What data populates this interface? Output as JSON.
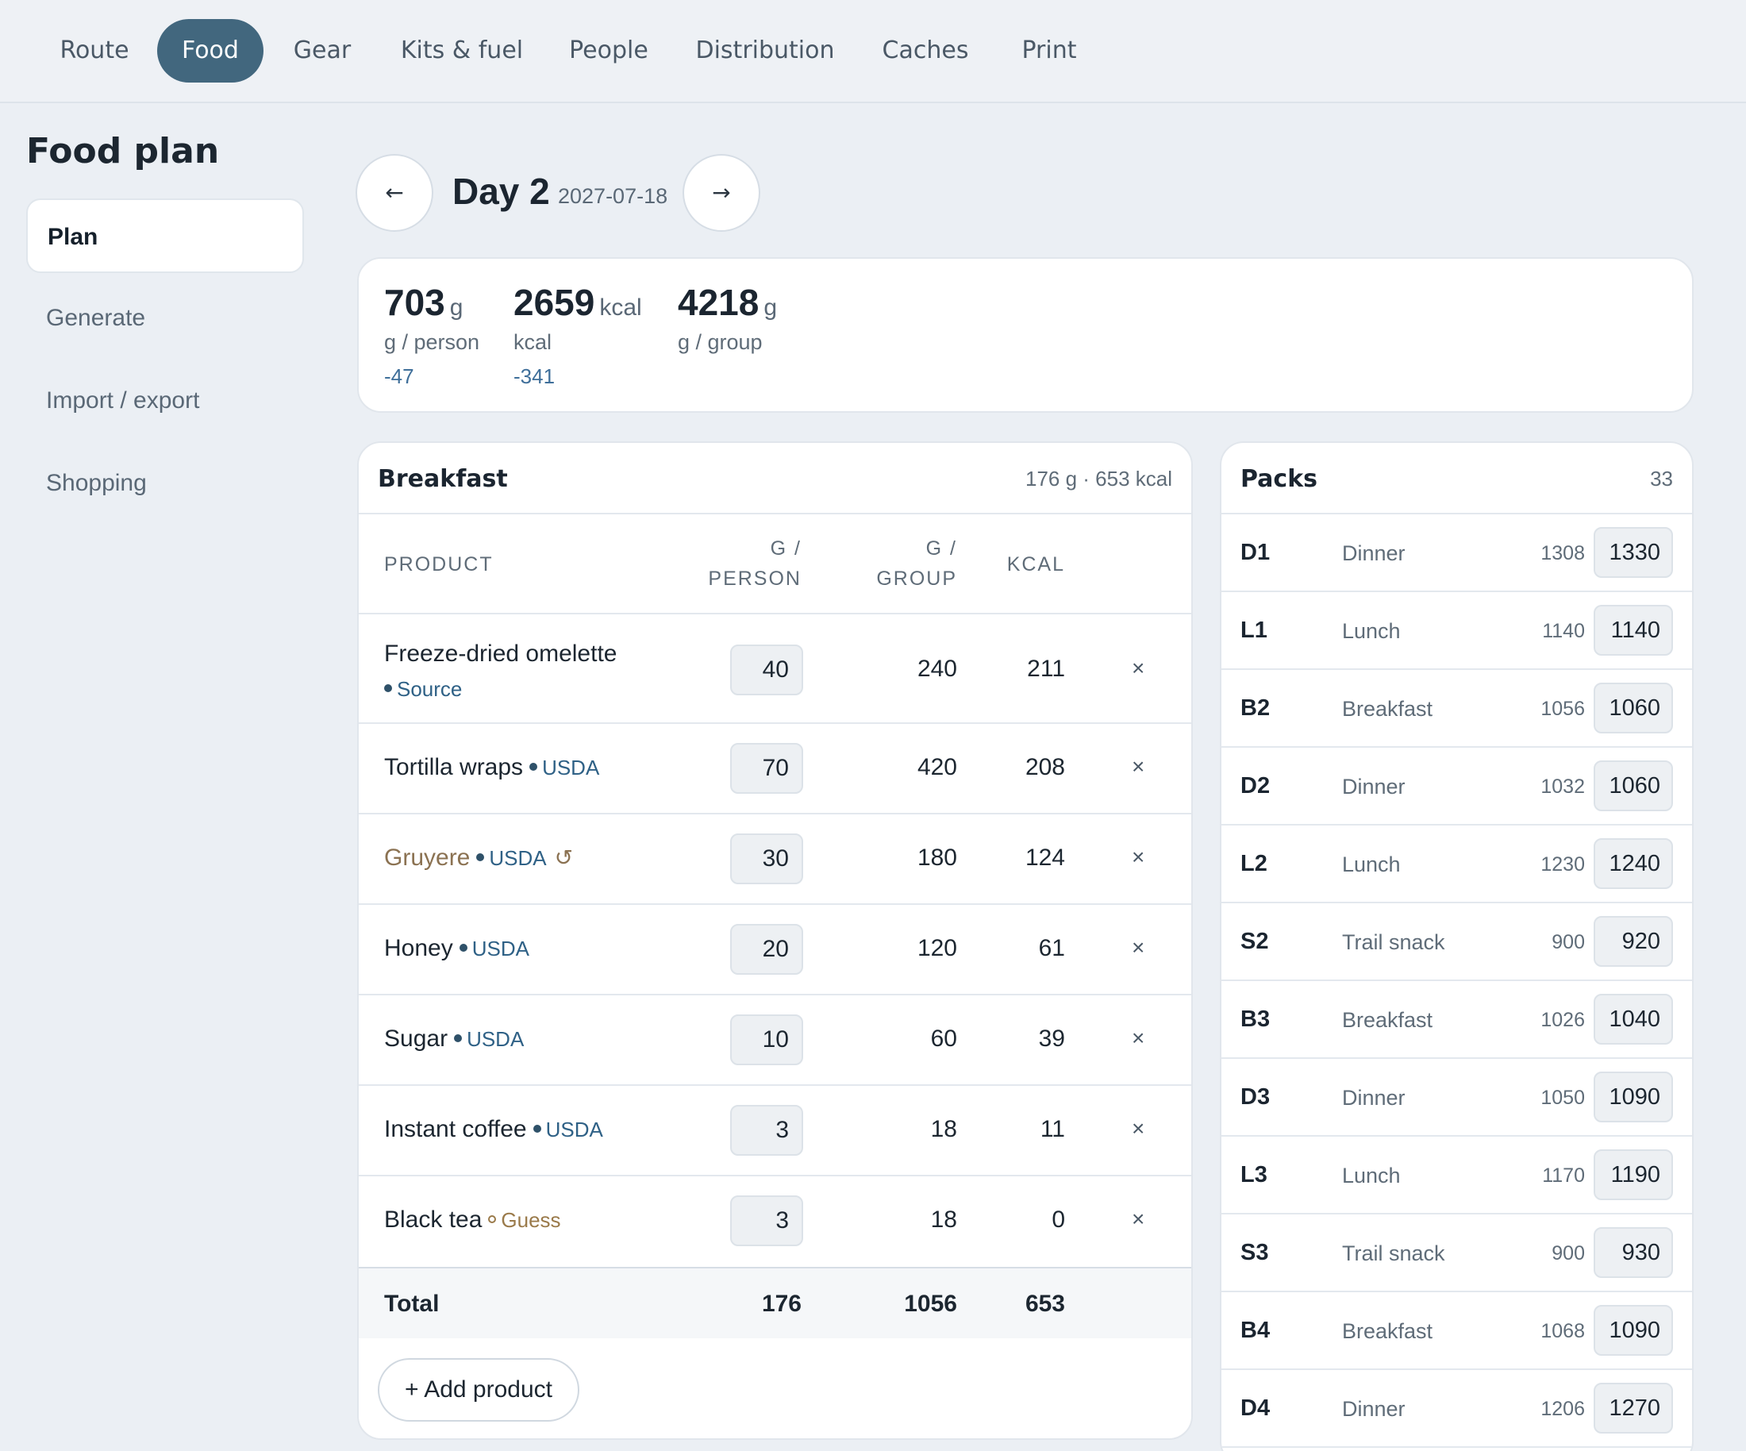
{
  "nav": {
    "tabs": [
      {
        "label": "Route"
      },
      {
        "label": "Food",
        "active": true
      },
      {
        "label": "Gear"
      },
      {
        "label": "Kits & fuel"
      },
      {
        "label": "People"
      },
      {
        "label": "Distribution"
      },
      {
        "label": "Caches"
      },
      {
        "label": "Print"
      }
    ]
  },
  "sidebar": {
    "title": "Food plan",
    "items": [
      {
        "label": "Plan",
        "active": true
      },
      {
        "label": "Generate"
      },
      {
        "label": "Import / export"
      },
      {
        "label": "Shopping"
      }
    ]
  },
  "day": {
    "prev_icon": "←",
    "next_icon": "→",
    "title": "Day 2",
    "date": "2027-07-18"
  },
  "summary": {
    "per_person": {
      "value": "703",
      "unit": "g",
      "label": "g / person",
      "delta": "-47"
    },
    "kcal": {
      "value": "2659",
      "unit": "kcal",
      "label": "kcal",
      "delta": "-341"
    },
    "group": {
      "value": "4218",
      "unit": "g",
      "label": "g / group"
    }
  },
  "meal": {
    "title": "Breakfast",
    "summary": "176 g · 653 kcal",
    "columns": {
      "product": "PRODUCT",
      "g_person_1": "G /",
      "g_person_2": "PERSON",
      "g_group_1": "G /",
      "g_group_2": "GROUP",
      "kcal": "KCAL"
    },
    "remove_icon": "×",
    "rows": [
      {
        "name": "Freeze-dried omelette",
        "source": "Source",
        "g_person": "40",
        "g_group": "240",
        "kcal": "211"
      },
      {
        "name": "Tortilla wraps",
        "source": "USDA",
        "g_person": "70",
        "g_group": "420",
        "kcal": "208"
      },
      {
        "name": "Gruyere",
        "source": "USDA",
        "undo_icon": "↺",
        "g_person": "30",
        "g_group": "180",
        "kcal": "124"
      },
      {
        "name": "Honey",
        "source": "USDA",
        "g_person": "20",
        "g_group": "120",
        "kcal": "61"
      },
      {
        "name": "Sugar",
        "source": "USDA",
        "g_person": "10",
        "g_group": "60",
        "kcal": "39"
      },
      {
        "name": "Instant coffee",
        "source": "USDA",
        "g_person": "3",
        "g_group": "18",
        "kcal": "11"
      },
      {
        "name": "Black tea",
        "source": "Guess",
        "g_person": "3",
        "g_group": "18",
        "kcal": "0"
      }
    ],
    "total": {
      "label": "Total",
      "g_person": "176",
      "g_group": "1056",
      "kcal": "653"
    },
    "add_label": "+ Add product"
  },
  "packs": {
    "title": "Packs",
    "count": "33",
    "items": [
      {
        "id": "D1",
        "type": "Dinner",
        "planned": "1308",
        "actual": "1330"
      },
      {
        "id": "L1",
        "type": "Lunch",
        "planned": "1140",
        "actual": "1140"
      },
      {
        "id": "B2",
        "type": "Breakfast",
        "planned": "1056",
        "actual": "1060"
      },
      {
        "id": "D2",
        "type": "Dinner",
        "planned": "1032",
        "actual": "1060"
      },
      {
        "id": "L2",
        "type": "Lunch",
        "planned": "1230",
        "actual": "1240"
      },
      {
        "id": "S2",
        "type": "Trail snack",
        "planned": "900",
        "actual": "920"
      },
      {
        "id": "B3",
        "type": "Breakfast",
        "planned": "1026",
        "actual": "1040"
      },
      {
        "id": "D3",
        "type": "Dinner",
        "planned": "1050",
        "actual": "1090"
      },
      {
        "id": "L3",
        "type": "Lunch",
        "planned": "1170",
        "actual": "1190"
      },
      {
        "id": "S3",
        "type": "Trail snack",
        "planned": "900",
        "actual": "930"
      },
      {
        "id": "B4",
        "type": "Breakfast",
        "planned": "1068",
        "actual": "1090"
      },
      {
        "id": "D4",
        "type": "Dinner",
        "planned": "1206",
        "actual": "1270"
      }
    ]
  }
}
